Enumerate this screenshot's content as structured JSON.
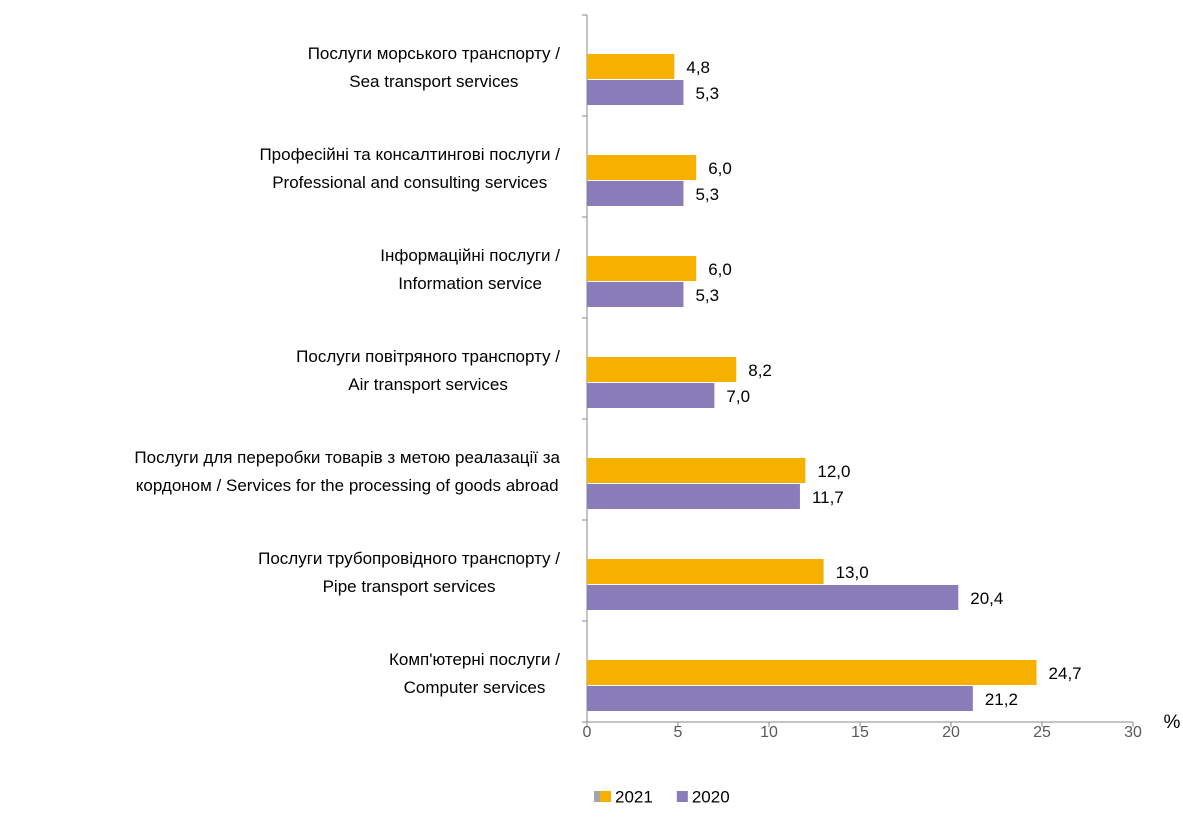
{
  "chart_data": {
    "type": "barh",
    "categories": [
      [
        "Послуги морського транспорту /",
        "Sea transport services"
      ],
      [
        "Професійні та консалтингові послуги /",
        "Professional and consulting services"
      ],
      [
        "Інформаційні послуги /",
        "Information  service"
      ],
      [
        "Послуги повітряного транспорту /",
        "Air transport services"
      ],
      [
        "Послуги для переробки товарів з метою реалазації за",
        "кордоном / Services for the processing of goods abroad"
      ],
      [
        "Послуги трубопровідного транспорту /",
        "Pipe transport services"
      ],
      [
        "Комп'ютерні послуги /",
        "Computer services"
      ]
    ],
    "series": [
      {
        "name": "2021",
        "color": "#f5b000",
        "values": [
          4.8,
          6.0,
          6.0,
          8.2,
          12.0,
          13.0,
          24.7
        ],
        "value_labels": [
          "4,8",
          "6,0",
          "6,0",
          "8,2",
          "12,0",
          "13,0",
          "24,7"
        ]
      },
      {
        "name": "2020",
        "color": "#8a7cb9",
        "values": [
          5.3,
          5.3,
          5.3,
          7.0,
          11.7,
          20.4,
          21.2
        ],
        "value_labels": [
          "5,3",
          "5,3",
          "5,3",
          "7,0",
          "11,7",
          "20,4",
          "21,2"
        ]
      }
    ],
    "xlabel": "%",
    "xlim": [
      0,
      30
    ],
    "xticks": [
      0,
      5,
      10,
      15,
      20,
      25,
      30
    ]
  }
}
